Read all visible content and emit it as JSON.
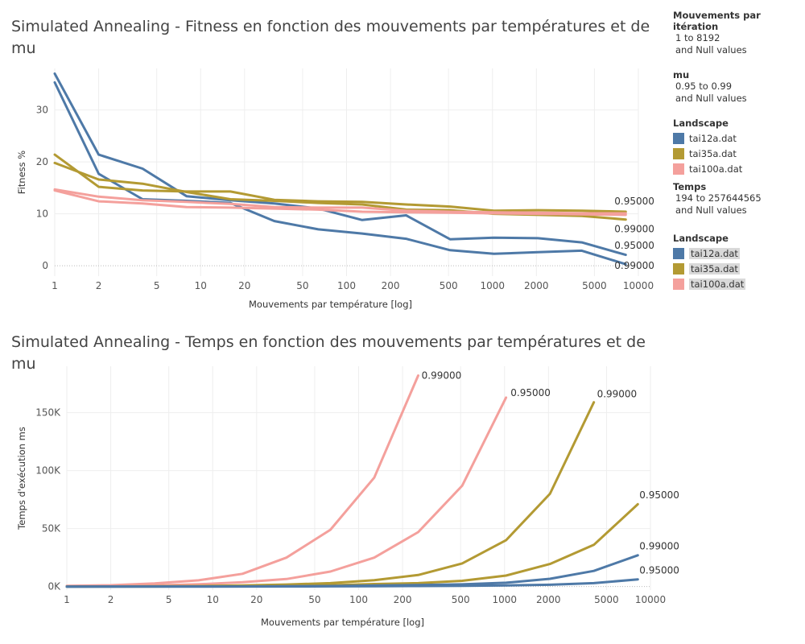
{
  "colors": {
    "tai12a.dat": "#4e79a7",
    "tai35a.dat": "#b39a33",
    "tai100a.dat": "#f4a09c"
  },
  "legend": {
    "filters": [
      {
        "title": "Mouvements par itération",
        "lines": [
          "1 to 8192",
          "and Null values"
        ]
      },
      {
        "title": "mu",
        "lines": [
          "0.95 to 0.99",
          "and Null values"
        ]
      }
    ],
    "landscape1": {
      "title": "Landscape",
      "items": [
        "tai12a.dat",
        "tai35a.dat",
        "tai100a.dat"
      ]
    },
    "temps": {
      "title": "Temps",
      "lines": [
        "194 to 257644565",
        "and Null values"
      ]
    },
    "landscape2": {
      "title": "Landscape",
      "items": [
        "tai12a.dat",
        "tai35a.dat",
        "tai100a.dat"
      ]
    }
  },
  "chart_data": [
    {
      "type": "line",
      "title": "Simulated Annealing - Fitness en fonction des mouvements par températures et de mu",
      "xlabel": "Mouvements par température [log]",
      "ylabel": "Fitness %",
      "xscale": "log",
      "xlim": [
        1,
        10000
      ],
      "ylim": [
        -2,
        38
      ],
      "xticks": [
        1,
        2,
        5,
        10,
        20,
        50,
        100,
        200,
        500,
        1000,
        2000,
        5000,
        10000
      ],
      "xtick_labels": [
        "1",
        "2",
        "5",
        "10",
        "20",
        "50",
        "100",
        "200",
        "500",
        "1000",
        "2000",
        "5000",
        "10000"
      ],
      "yticks": [
        0,
        10,
        20,
        30
      ],
      "ytick_labels": [
        "0",
        "10",
        "20",
        "30"
      ],
      "x": [
        1,
        2,
        4,
        8,
        16,
        32,
        64,
        128,
        256,
        512,
        1024,
        2048,
        4096,
        8192
      ],
      "series": [
        {
          "landscape": "tai12a.dat",
          "mu": "0.95000",
          "values": [
            37,
            21.4,
            18.7,
            13.4,
            12.6,
            12.0,
            11.0,
            8.8,
            9.7,
            5.1,
            5.4,
            5.3,
            4.5,
            2.1
          ]
        },
        {
          "landscape": "tai12a.dat",
          "mu": "0.99000",
          "values": [
            35.3,
            17.7,
            12.8,
            12.5,
            12.1,
            8.6,
            7.0,
            6.2,
            5.2,
            3.0,
            2.3,
            2.6,
            2.9,
            0.3
          ]
        },
        {
          "landscape": "tai35a.dat",
          "mu": "0.95000",
          "values": [
            21.4,
            15.2,
            14.5,
            14.3,
            14.3,
            12.7,
            12.4,
            12.3,
            11.8,
            11.4,
            10.6,
            10.7,
            10.6,
            10.4
          ]
        },
        {
          "landscape": "tai35a.dat",
          "mu": "0.99000",
          "values": [
            19.8,
            16.6,
            15.8,
            14.2,
            12.8,
            12.5,
            12.1,
            11.8,
            10.8,
            10.7,
            10.0,
            9.8,
            9.6,
            8.9
          ]
        },
        {
          "landscape": "tai100a.dat",
          "mu": "0.95000",
          "values": [
            14.7,
            13.3,
            12.6,
            12.3,
            11.9,
            11.3,
            11.2,
            11.2,
            10.6,
            10.4,
            10.3,
            10.2,
            10.1,
            10.1
          ]
        },
        {
          "landscape": "tai100a.dat",
          "mu": "0.99000",
          "values": [
            14.5,
            12.4,
            12.0,
            11.3,
            11.2,
            11.0,
            10.8,
            10.4,
            10.3,
            10.2,
            10.1,
            10.0,
            9.9,
            9.8
          ]
        }
      ],
      "annotations": [
        {
          "text": "0.95000",
          "x": 8192,
          "y": 12.4
        },
        {
          "text": "0.99000",
          "x": 8192,
          "y": 7.1
        },
        {
          "text": "0.95000",
          "x": 8192,
          "y": 3.9
        },
        {
          "text": "0.99000",
          "x": 8192,
          "y": 0.0
        }
      ]
    },
    {
      "type": "line",
      "title": "Simulated Annealing - Temps en fonction des mouvements par températures et de mu",
      "xlabel": "Mouvements par température [log]",
      "ylabel": "Temps d'exécution ms",
      "xscale": "log",
      "xlim": [
        1,
        10000
      ],
      "ylim": [
        -3000,
        190000
      ],
      "xticks": [
        1,
        2,
        5,
        10,
        20,
        50,
        100,
        200,
        500,
        1000,
        2000,
        5000,
        10000
      ],
      "xtick_labels": [
        "1",
        "2",
        "5",
        "10",
        "20",
        "50",
        "100",
        "200",
        "500",
        "1000",
        "2000",
        "5000",
        "10000"
      ],
      "yticks": [
        0,
        50000,
        100000,
        150000
      ],
      "ytick_labels": [
        "0K",
        "50K",
        "100K",
        "150K"
      ],
      "series": [
        {
          "landscape": "tai100a.dat",
          "mu": "0.99000",
          "x": [
            1,
            2,
            4,
            8,
            16,
            32,
            64,
            128,
            256
          ],
          "values": [
            600,
            1200,
            2700,
            5400,
            11000,
            25000,
            49000,
            94000,
            182000
          ]
        },
        {
          "landscape": "tai100a.dat",
          "mu": "0.95000",
          "x": [
            1,
            2,
            4,
            8,
            16,
            32,
            64,
            128,
            256,
            512,
            1024
          ],
          "values": [
            200,
            500,
            1000,
            2000,
            3800,
            6500,
            13000,
            25000,
            47000,
            87000,
            163000
          ]
        },
        {
          "landscape": "tai35a.dat",
          "mu": "0.99000",
          "x": [
            1,
            2,
            4,
            8,
            16,
            32,
            64,
            128,
            256,
            512,
            1024,
            2048,
            4096
          ],
          "values": [
            60,
            120,
            250,
            500,
            1000,
            1800,
            3000,
            5500,
            10000,
            20000,
            40000,
            80000,
            159000
          ]
        },
        {
          "landscape": "tai35a.dat",
          "mu": "0.95000",
          "x": [
            1,
            2,
            4,
            8,
            16,
            32,
            64,
            128,
            256,
            512,
            1024,
            2048,
            4096,
            8192
          ],
          "values": [
            20,
            40,
            80,
            160,
            350,
            700,
            1200,
            2200,
            3000,
            5000,
            9500,
            19500,
            36000,
            71000
          ]
        },
        {
          "landscape": "tai12a.dat",
          "mu": "0.99000",
          "x": [
            1,
            2,
            4,
            8,
            16,
            32,
            64,
            128,
            256,
            512,
            1024,
            2048,
            4096,
            8192
          ],
          "values": [
            10,
            20,
            40,
            80,
            150,
            250,
            500,
            900,
            1400,
            1900,
            3300,
            6700,
            13500,
            27000
          ]
        },
        {
          "landscape": "tai12a.dat",
          "mu": "0.95000",
          "x": [
            1,
            2,
            4,
            8,
            16,
            32,
            64,
            128,
            256,
            512,
            1024,
            2048,
            4096,
            8192
          ],
          "values": [
            5,
            10,
            20,
            40,
            70,
            120,
            200,
            350,
            500,
            700,
            1000,
            1600,
            3000,
            6200
          ]
        }
      ],
      "annotations": [
        {
          "text": "0.99000",
          "x": 270,
          "y": 182000
        },
        {
          "text": "0.95000",
          "x": 1100,
          "y": 167000
        },
        {
          "text": "0.99000",
          "x": 4300,
          "y": 166000
        },
        {
          "text": "0.95000",
          "x": 8400,
          "y": 79000
        },
        {
          "text": "0.99000",
          "x": 8400,
          "y": 35000
        },
        {
          "text": "0.95000",
          "x": 8400,
          "y": 14000
        }
      ]
    }
  ]
}
